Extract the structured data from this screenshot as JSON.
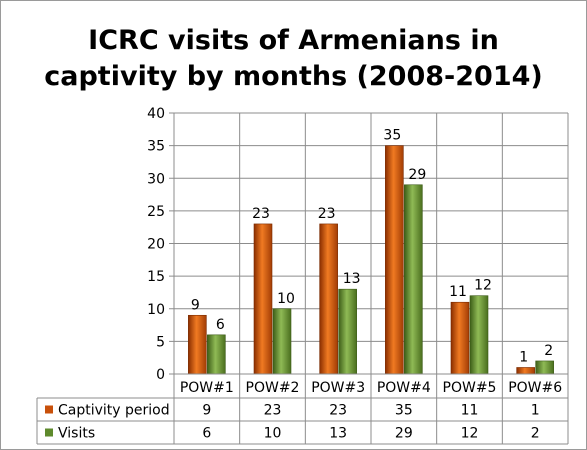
{
  "chart_data": {
    "type": "bar",
    "title": "ICRC visits of Armenians in\ncaptivity by months (2008-2014)",
    "categories": [
      "POW#1",
      "POW#2",
      "POW#3",
      "POW#4",
      "POW#5",
      "POW#6"
    ],
    "series": [
      {
        "name": "Captivity period",
        "values": [
          9,
          23,
          23,
          35,
          11,
          1
        ],
        "color": "#c8500a"
      },
      {
        "name": "Visits",
        "values": [
          6,
          10,
          13,
          29,
          12,
          2
        ],
        "color": "#5e8a2c"
      }
    ],
    "ylim": [
      0,
      40
    ],
    "yticks": [
      0,
      5,
      10,
      15,
      20,
      25,
      30,
      35,
      40
    ],
    "grid": true,
    "data_labels": true,
    "legend": "data-table"
  }
}
